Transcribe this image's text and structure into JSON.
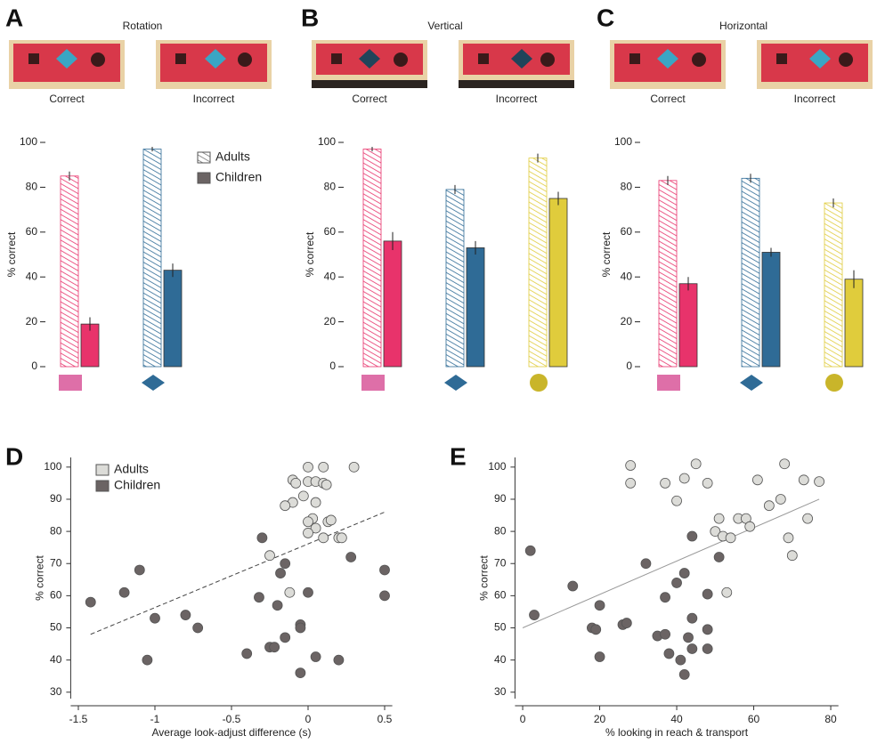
{
  "chart_data": [
    {
      "type": "bar",
      "panel": "A",
      "title": "Rotation",
      "photo_labels": [
        "Correct",
        "Incorrect"
      ],
      "ylabel": "% correct",
      "categories": [
        null,
        null
      ],
      "colors": [
        "#e8336b",
        "#2f6b96"
      ],
      "ylim": [
        0,
        100
      ],
      "yticks": [
        0,
        20,
        40,
        60,
        80,
        100
      ],
      "series": [
        {
          "name": "Adults",
          "pattern": "hatched",
          "values": [
            85,
            97
          ],
          "errors": [
            2,
            1
          ]
        },
        {
          "name": "Children",
          "pattern": "solid",
          "values": [
            19,
            43
          ],
          "errors": [
            3,
            3
          ]
        }
      ]
    },
    {
      "type": "bar",
      "panel": "B",
      "title": "Vertical",
      "photo_labels": [
        "Correct",
        "Incorrect"
      ],
      "ylabel": "% correct",
      "categories": [
        null,
        null,
        null
      ],
      "colors": [
        "#e8336b",
        "#2f6b96",
        "#e0cc3c"
      ],
      "ylim": [
        0,
        100
      ],
      "yticks": [
        0,
        20,
        40,
        60,
        80,
        100
      ],
      "series": [
        {
          "pattern": "hatched",
          "values": [
            97,
            79,
            93
          ],
          "errors": [
            1,
            2,
            2
          ]
        },
        {
          "pattern": "solid",
          "values": [
            56,
            53,
            75
          ],
          "errors": [
            4,
            3,
            3
          ]
        }
      ]
    },
    {
      "type": "bar",
      "panel": "C",
      "title": "Horizontal",
      "photo_labels": [
        "Correct",
        "Incorrect"
      ],
      "ylabel": "% correct",
      "categories": [
        null,
        null,
        null
      ],
      "colors": [
        "#e8336b",
        "#2f6b96",
        "#e0cc3c"
      ],
      "ylim": [
        0,
        100
      ],
      "yticks": [
        0,
        20,
        40,
        60,
        80,
        100
      ],
      "series": [
        {
          "pattern": "hatched",
          "values": [
            83,
            84,
            73
          ],
          "errors": [
            2,
            2,
            2
          ]
        },
        {
          "pattern": "solid",
          "values": [
            37,
            51,
            39
          ],
          "errors": [
            3,
            2,
            4
          ]
        }
      ]
    },
    {
      "type": "scatter",
      "panel": "D",
      "xlabel": "Average look-adjust difference (s)",
      "ylabel": "% correct",
      "xlim": [
        -1.55,
        0.55
      ],
      "ylim": [
        28,
        103
      ],
      "xticks": [
        -1.5,
        -1,
        -0.5,
        0,
        0.5
      ],
      "yticks": [
        30,
        40,
        50,
        60,
        70,
        80,
        90,
        100
      ],
      "series": [
        {
          "name": "Adults",
          "color": "#dcdcd8",
          "x": [
            0,
            0.1,
            0.3,
            -0.1,
            -0.08,
            0,
            0.05,
            0.1,
            0.12,
            -0.03,
            -0.1,
            -0.15,
            0.05,
            0.03,
            0,
            0.13,
            0.15,
            0.05,
            0,
            0.1,
            0.2,
            0.22,
            -0.25,
            -0.12
          ],
          "values": [
            100,
            100,
            100,
            96,
            95,
            95.5,
            95.5,
            95,
            94.5,
            91,
            89,
            88,
            89,
            84,
            83,
            83,
            83.5,
            81,
            79.5,
            78,
            78,
            78,
            72.5,
            61
          ]
        },
        {
          "name": "Children",
          "color": "#6b6464",
          "x": [
            -1.42,
            -1.2,
            -1.1,
            -1.05,
            -1,
            -0.8,
            -0.72,
            -0.4,
            -0.3,
            -0.32,
            -0.25,
            -0.22,
            -0.2,
            -0.18,
            -0.15,
            -0.15,
            -0.05,
            -0.05,
            -0.05,
            0,
            0.05,
            0.2,
            0.28,
            0.5,
            0.5
          ],
          "values": [
            58,
            61,
            68,
            40,
            53,
            54,
            50,
            42,
            78,
            59.5,
            44,
            44,
            57,
            67,
            70,
            47,
            51,
            50,
            36,
            61,
            41,
            40,
            72,
            68,
            60
          ]
        }
      ],
      "trend": {
        "x": [
          -1.42,
          0.5
        ],
        "values": [
          48,
          86
        ],
        "dash": true
      }
    },
    {
      "type": "scatter",
      "panel": "E",
      "xlabel": "% looking in reach & transport",
      "ylabel": "% correct",
      "xlim": [
        -2,
        82
      ],
      "ylim": [
        28,
        103
      ],
      "xticks": [
        0,
        20,
        40,
        60,
        80
      ],
      "yticks": [
        30,
        40,
        50,
        60,
        70,
        80,
        90,
        100
      ],
      "series": [
        {
          "color": "#dcdcd8",
          "x": [
            28,
            28,
            37,
            40,
            42,
            45,
            48,
            50,
            51,
            52,
            54,
            56,
            58,
            59,
            61,
            64,
            67,
            68,
            69,
            70,
            73,
            74,
            77,
            53
          ],
          "values": [
            100.5,
            95,
            95,
            89.5,
            96.5,
            101,
            95,
            80,
            84,
            78.5,
            78,
            84,
            84,
            81.5,
            96,
            88,
            90,
            101,
            78,
            72.5,
            96,
            84,
            95.5,
            61
          ]
        },
        {
          "color": "#6b6464",
          "x": [
            2,
            3,
            13,
            18,
            19,
            20,
            20,
            26,
            27,
            32,
            35,
            37,
            37,
            38,
            40,
            41,
            42,
            42,
            43,
            44,
            44,
            44,
            48,
            48,
            48,
            51
          ],
          "values": [
            74,
            54,
            63,
            50,
            49.5,
            41,
            57,
            51,
            51.5,
            70,
            47.5,
            48,
            59.5,
            42,
            64,
            40,
            35.5,
            67,
            47,
            43.5,
            53,
            78.5,
            60.5,
            49.5,
            43.5,
            72
          ]
        }
      ],
      "trend": {
        "x": [
          0,
          77
        ],
        "values": [
          50,
          90
        ],
        "dash": false
      }
    }
  ]
}
